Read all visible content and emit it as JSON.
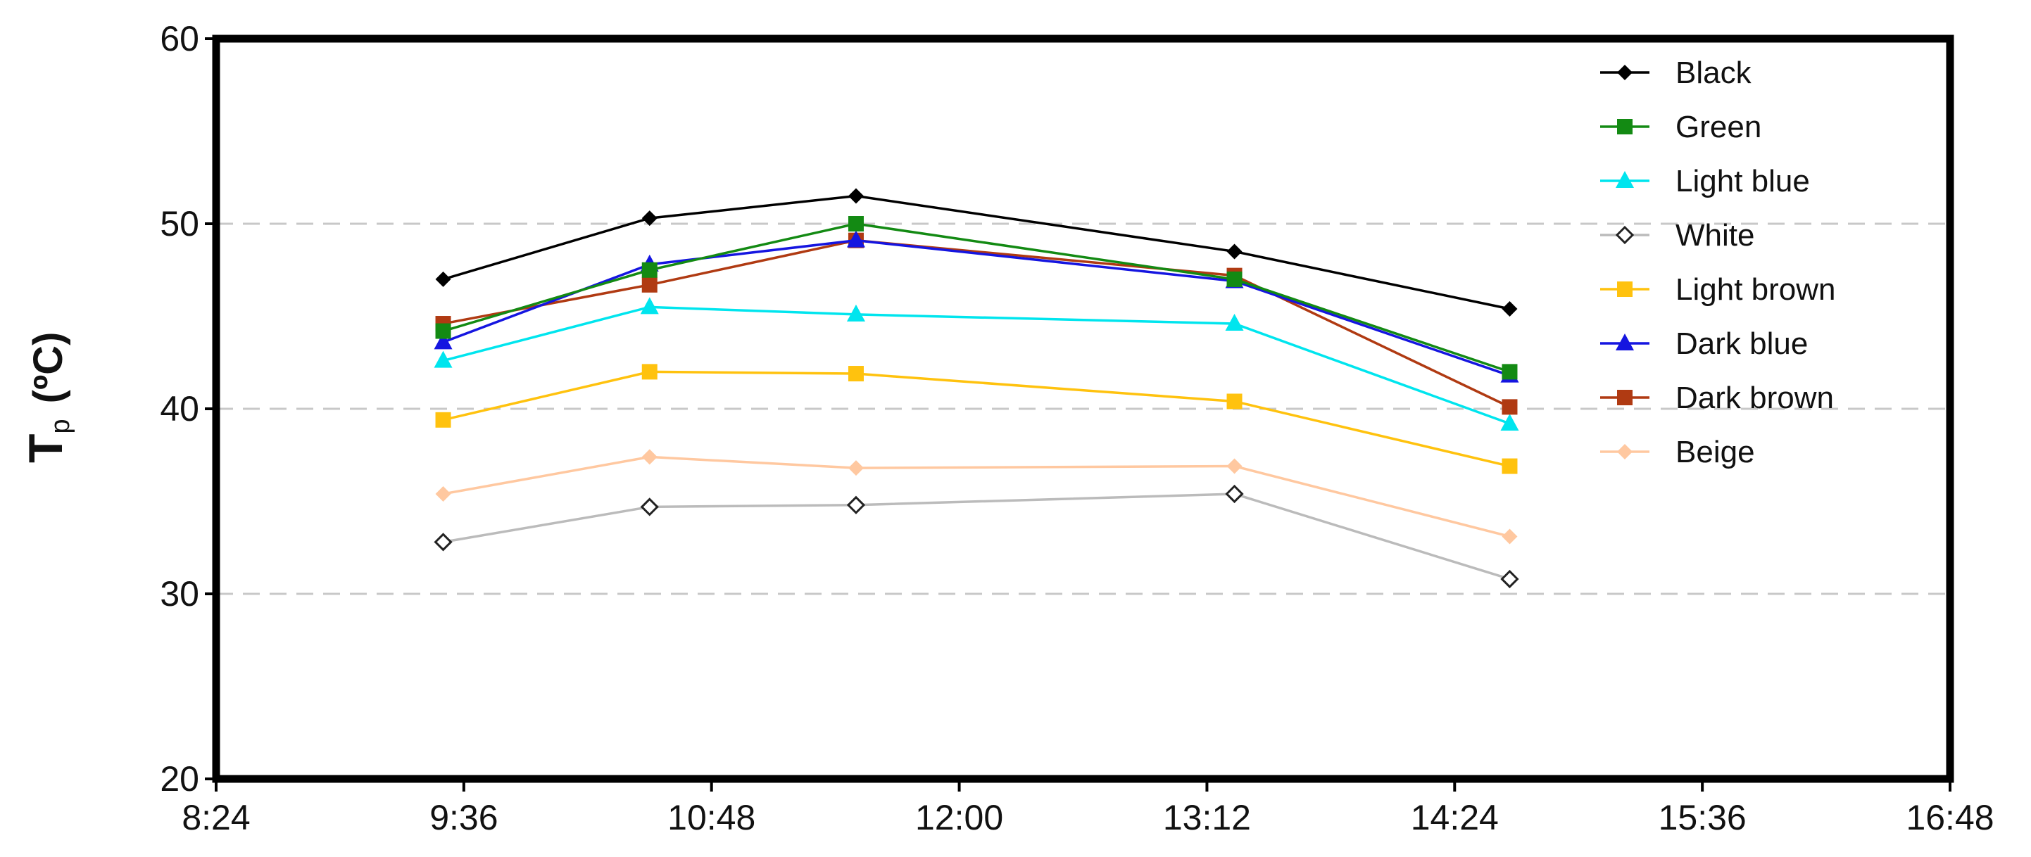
{
  "chart_data": {
    "type": "line",
    "title": "",
    "ylabel": {
      "main": "T",
      "subscript": "p",
      "unit": "(ºC)"
    },
    "xlabel": "",
    "x_ticks": [
      "8:24",
      "9:36",
      "10:48",
      "12:00",
      "13:12",
      "14:24",
      "15:36",
      "16:48"
    ],
    "xlim": [
      "8:24",
      "16:48"
    ],
    "y_ticks": [
      "20",
      "30",
      "40",
      "50",
      "60"
    ],
    "ylim": [
      20,
      60
    ],
    "grid": "horizontal dashed at 30, 40, 50",
    "legend_position": "top-right",
    "x": [
      "9:30",
      "10:30",
      "11:30",
      "13:20",
      "14:40"
    ],
    "series": [
      {
        "name": "Black",
        "color": "#000000",
        "marker": "diamond-filled",
        "values": [
          47.0,
          50.3,
          51.5,
          48.5,
          45.4
        ]
      },
      {
        "name": "Green",
        "color": "#138a13",
        "marker": "square",
        "values": [
          44.2,
          47.5,
          50.0,
          47.0,
          42.0
        ]
      },
      {
        "name": "Light blue",
        "color": "#00e5ee",
        "marker": "triangle",
        "values": [
          42.6,
          45.5,
          45.1,
          44.6,
          39.2
        ]
      },
      {
        "name": "White",
        "color": "#bbbbbb",
        "marker": "diamond-open",
        "values": [
          32.8,
          34.7,
          34.8,
          35.4,
          30.8
        ]
      },
      {
        "name": "Light brown",
        "color": "#ffc20e",
        "marker": "square",
        "values": [
          39.4,
          42.0,
          41.9,
          40.4,
          36.9
        ]
      },
      {
        "name": "Dark blue",
        "color": "#1515e0",
        "marker": "triangle",
        "values": [
          43.6,
          47.8,
          49.1,
          46.9,
          41.8
        ]
      },
      {
        "name": "Dark brown",
        "color": "#b03a12",
        "marker": "square",
        "values": [
          44.6,
          46.7,
          49.1,
          47.2,
          40.1
        ]
      },
      {
        "name": "Beige",
        "color": "#ffc8a0",
        "marker": "diamond-filled",
        "values": [
          35.4,
          37.4,
          36.8,
          36.9,
          33.1
        ]
      }
    ]
  }
}
